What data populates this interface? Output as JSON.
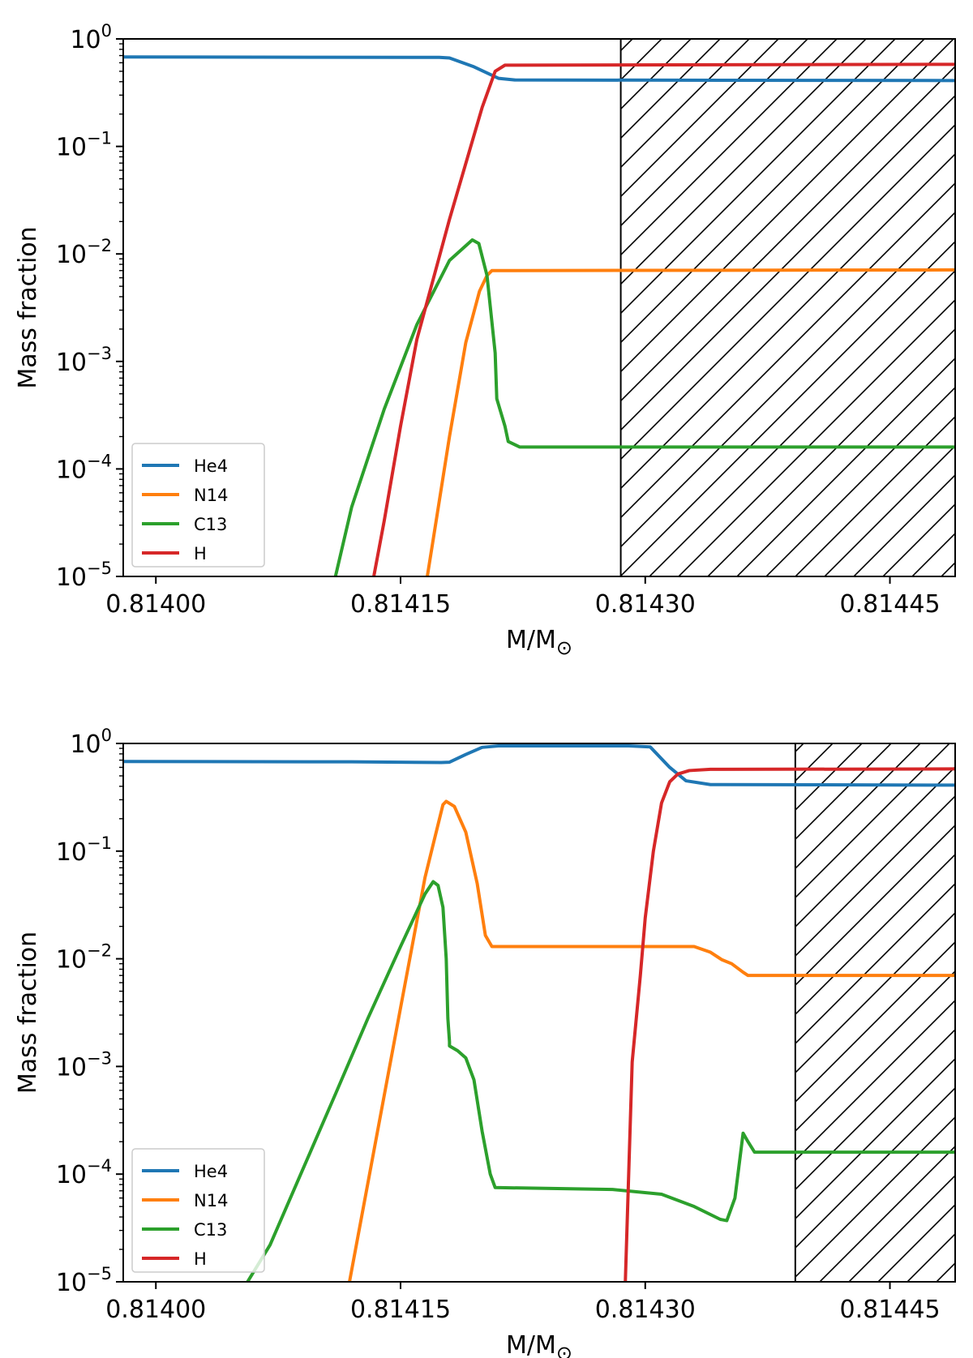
{
  "chart_data": [
    {
      "type": "line",
      "title": "",
      "xlabel": "M/M",
      "xlabel_symbol": "⊙",
      "ylabel": "Mass fraction",
      "yscale": "log",
      "xlim": [
        0.81398,
        0.81449
      ],
      "ylim": [
        1e-05,
        1
      ],
      "x_ticks": [
        "0.81400",
        "0.81415",
        "0.81430",
        "0.81445"
      ],
      "x_tick_values": [
        0.814,
        0.81415,
        0.8143,
        0.81445
      ],
      "y_ticks": [
        {
          "base": "10",
          "exp": "0",
          "value": 1
        },
        {
          "base": "10",
          "exp": "−1",
          "value": 0.1
        },
        {
          "base": "10",
          "exp": "−2",
          "value": 0.01
        },
        {
          "base": "10",
          "exp": "−3",
          "value": 0.001
        },
        {
          "base": "10",
          "exp": "−4",
          "value": 0.0001
        },
        {
          "base": "10",
          "exp": "−5",
          "value": 1e-05
        }
      ],
      "grid": false,
      "legend_position": "lower-left",
      "hatched_region": {
        "x_start": 0.814285,
        "x_end": 0.81449
      },
      "series": [
        {
          "name": "He4",
          "color": "#1f77b4",
          "points": [
            [
              0.81398,
              0.68
            ],
            [
              0.8141,
              0.675
            ],
            [
              0.8141737,
              0.674
            ],
            [
              0.81418,
              0.665
            ],
            [
              0.814195,
              0.55
            ],
            [
              0.81421,
              0.43
            ],
            [
              0.81422,
              0.415
            ],
            [
              0.81449,
              0.41
            ]
          ]
        },
        {
          "name": "N14",
          "color": "#ff7f0e",
          "points": [
            [
              0.8141664,
              1e-05
            ],
            [
              0.81417,
              2.2e-05
            ],
            [
              0.81418,
              0.0002
            ],
            [
              0.81419,
              0.0015
            ],
            [
              0.8141984,
              0.0045
            ],
            [
              0.814203,
              0.0063
            ],
            [
              0.814206,
              0.007
            ],
            [
              0.81449,
              0.0071
            ]
          ]
        },
        {
          "name": "C13",
          "color": "#2ca02c",
          "points": [
            [
              0.8141101,
              1e-05
            ],
            [
              0.81412,
              4.4e-05
            ],
            [
              0.81414,
              0.00036
            ],
            [
              0.81416,
              0.0022
            ],
            [
              0.81418,
              0.0087
            ],
            [
              0.814194,
              0.0135
            ],
            [
              0.814198,
              0.0125
            ],
            [
              0.814203,
              0.0063
            ],
            [
              0.814208,
              0.0012
            ],
            [
              0.814209,
              0.00045
            ],
            [
              0.814214,
              0.00025
            ],
            [
              0.814216,
              0.00018
            ],
            [
              0.814223,
              0.00016
            ],
            [
              0.81449,
              0.00016
            ]
          ]
        },
        {
          "name": "H",
          "color": "#d62728",
          "points": [
            [
              0.8141336,
              1e-05
            ],
            [
              0.81414,
              3.3e-05
            ],
            [
              0.81415,
              0.00025
            ],
            [
              0.81416,
              0.0016
            ],
            [
              0.81418,
              0.021
            ],
            [
              0.8142,
              0.23
            ],
            [
              0.814208,
              0.5
            ],
            [
              0.814214,
              0.57
            ],
            [
              0.81449,
              0.58
            ]
          ]
        }
      ]
    },
    {
      "type": "line",
      "title": "",
      "xlabel": "M/M",
      "xlabel_symbol": "⊙",
      "ylabel": "Mass fraction",
      "yscale": "log",
      "xlim": [
        0.81398,
        0.81449
      ],
      "ylim": [
        1e-05,
        1
      ],
      "x_ticks": [
        "0.81400",
        "0.81415",
        "0.81430",
        "0.81445"
      ],
      "x_tick_values": [
        0.814,
        0.81415,
        0.8143,
        0.81445
      ],
      "y_ticks": [
        {
          "base": "10",
          "exp": "0",
          "value": 1
        },
        {
          "base": "10",
          "exp": "−1",
          "value": 0.1
        },
        {
          "base": "10",
          "exp": "−2",
          "value": 0.01
        },
        {
          "base": "10",
          "exp": "−3",
          "value": 0.001
        },
        {
          "base": "10",
          "exp": "−4",
          "value": 0.0001
        },
        {
          "base": "10",
          "exp": "−5",
          "value": 1e-05
        }
      ],
      "grid": false,
      "legend_position": "lower-left",
      "hatched_region": {
        "x_start": 0.814392,
        "x_end": 0.81449
      },
      "series": [
        {
          "name": "He4",
          "color": "#1f77b4",
          "points": [
            [
              0.81398,
              0.68
            ],
            [
              0.81412,
              0.675
            ],
            [
              0.814175,
              0.665
            ],
            [
              0.81418,
              0.67
            ],
            [
              0.81419,
              0.79
            ],
            [
              0.8142,
              0.92
            ],
            [
              0.81421,
              0.95
            ],
            [
              0.81429,
              0.95
            ],
            [
              0.814303,
              0.93
            ],
            [
              0.814315,
              0.6
            ],
            [
              0.814325,
              0.45
            ],
            [
              0.81434,
              0.415
            ],
            [
              0.81449,
              0.41
            ]
          ]
        },
        {
          "name": "N14",
          "color": "#ff7f0e",
          "points": [
            [
              0.8141187,
              1e-05
            ],
            [
              0.81413,
              8.3e-05
            ],
            [
              0.81415,
              0.0035
            ],
            [
              0.814165,
              0.057
            ],
            [
              0.814176,
              0.27
            ],
            [
              0.814178,
              0.29
            ],
            [
              0.814183,
              0.26
            ],
            [
              0.81419,
              0.15
            ],
            [
              0.814197,
              0.05
            ],
            [
              0.814202,
              0.0165
            ],
            [
              0.814206,
              0.013
            ],
            [
              0.81433,
              0.013
            ],
            [
              0.81434,
              0.0115
            ],
            [
              0.814347,
              0.0098
            ],
            [
              0.814353,
              0.009
            ],
            [
              0.81436,
              0.0075
            ],
            [
              0.814363,
              0.007
            ],
            [
              0.81449,
              0.007
            ]
          ]
        },
        {
          "name": "C13",
          "color": "#2ca02c",
          "points": [
            [
              0.8140562,
              1e-05
            ],
            [
              0.81407,
              2.2e-05
            ],
            [
              0.81409,
              0.00011
            ],
            [
              0.81411,
              0.00055
            ],
            [
              0.81413,
              0.0028
            ],
            [
              0.81415,
              0.013
            ],
            [
              0.814165,
              0.04
            ],
            [
              0.81417,
              0.052
            ],
            [
              0.814173,
              0.048
            ],
            [
              0.814176,
              0.03
            ],
            [
              0.814178,
              0.01
            ],
            [
              0.814179,
              0.0028
            ],
            [
              0.81418,
              0.0017
            ],
            [
              0.81418,
              0.00155
            ],
            [
              0.814185,
              0.0014
            ],
            [
              0.81419,
              0.0012
            ],
            [
              0.814195,
              0.00075
            ],
            [
              0.8142,
              0.00025
            ],
            [
              0.814205,
              0.0001
            ],
            [
              0.814208,
              7.5e-05
            ],
            [
              0.81428,
              7.2e-05
            ],
            [
              0.81431,
              6.5e-05
            ],
            [
              0.81433,
              5e-05
            ],
            [
              0.814346,
              3.8e-05
            ],
            [
              0.81435,
              3.7e-05
            ],
            [
              0.814355,
              6e-05
            ],
            [
              0.81436,
              0.00024
            ],
            [
              0.814363,
              0.0002
            ],
            [
              0.814367,
              0.00016
            ],
            [
              0.81449,
              0.00016
            ]
          ]
        },
        {
          "name": "H",
          "color": "#d62728",
          "points": [
            [
              0.8142878,
              1e-05
            ],
            [
              0.814292,
              0.0011
            ],
            [
              0.814297,
              0.007
            ],
            [
              0.8143,
              0.024
            ],
            [
              0.814305,
              0.1
            ],
            [
              0.81431,
              0.28
            ],
            [
              0.814315,
              0.44
            ],
            [
              0.81432,
              0.52
            ],
            [
              0.814327,
              0.56
            ],
            [
              0.81434,
              0.575
            ],
            [
              0.81449,
              0.58
            ]
          ]
        }
      ]
    }
  ]
}
